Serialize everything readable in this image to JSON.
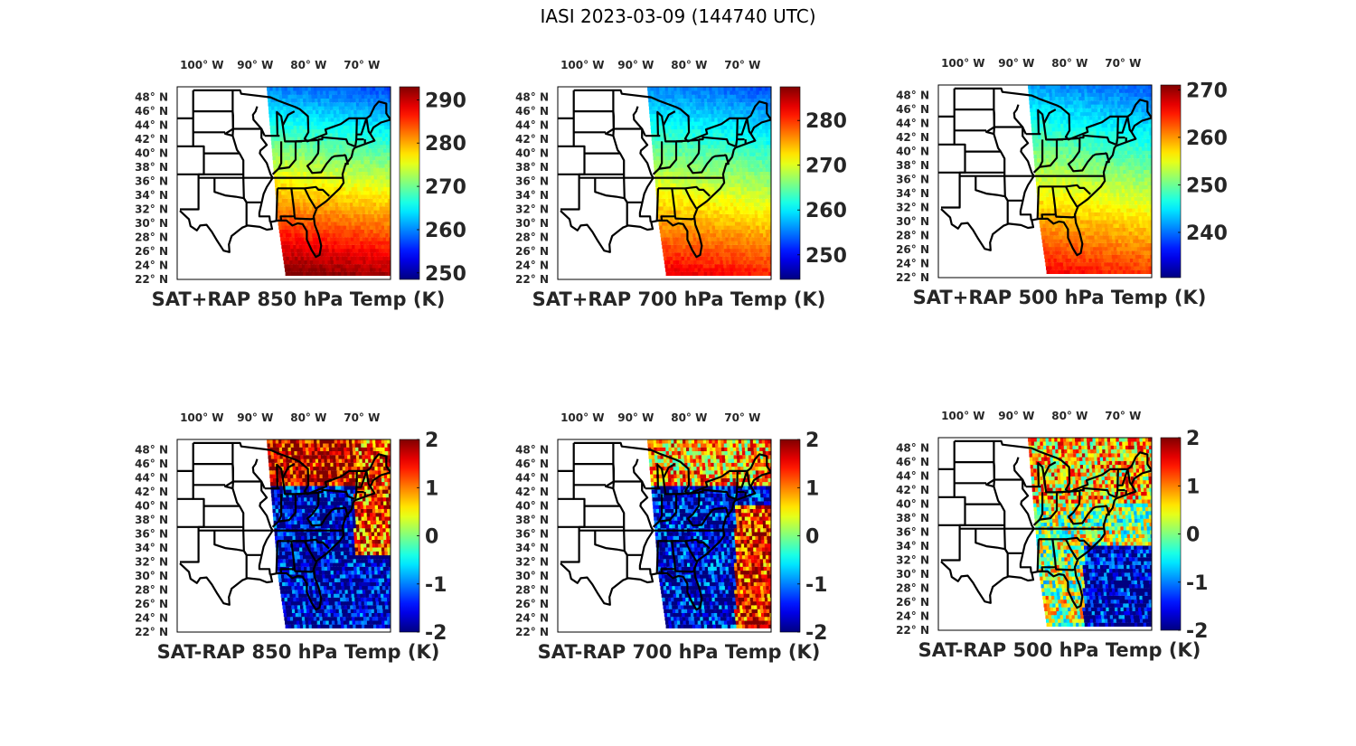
{
  "title": "IASI 2023-03-09 (144740 UTC)",
  "map_axes": {
    "lon_ticks": [
      "100° W",
      "90° W",
      "80° W",
      "70° W"
    ],
    "lon_values": [
      -100,
      -90,
      -80,
      -70
    ],
    "lat_ticks": [
      "48° N",
      "46° N",
      "44° N",
      "42° N",
      "40° N",
      "38° N",
      "36° N",
      "34° N",
      "32° N",
      "30° N",
      "28° N",
      "26° N",
      "24° N",
      "22° N"
    ],
    "lat_values": [
      48,
      46,
      44,
      42,
      40,
      38,
      36,
      34,
      32,
      30,
      28,
      26,
      24,
      22
    ],
    "lon_range": [
      -107,
      -67
    ],
    "lat_range": [
      22,
      49.5
    ]
  },
  "colormap": "jet",
  "chart_data": [
    {
      "type": "heatmap",
      "title": "SAT+RAP 850 hPa Temp (K)",
      "clim": [
        248.5,
        293
      ],
      "cbar_ticks": [
        250,
        260,
        270,
        280,
        290
      ],
      "field": "total",
      "level": 850
    },
    {
      "type": "heatmap",
      "title": "SAT+RAP 700 hPa Temp (K)",
      "clim": [
        244.5,
        287.5
      ],
      "cbar_ticks": [
        250,
        260,
        270,
        280
      ],
      "field": "total",
      "level": 700
    },
    {
      "type": "heatmap",
      "title": "SAT+RAP 500 hPa Temp (K)",
      "clim": [
        230.5,
        271
      ],
      "cbar_ticks": [
        240,
        250,
        260,
        270
      ],
      "field": "total",
      "level": 500
    },
    {
      "type": "heatmap",
      "title": "SAT-RAP 850 hPa Temp (K)",
      "clim": [
        -2,
        2
      ],
      "cbar_ticks": [
        -2,
        -1,
        0,
        1,
        2
      ],
      "field": "diff",
      "level": 850
    },
    {
      "type": "heatmap",
      "title": "SAT-RAP 700 hPa Temp (K)",
      "clim": [
        -2,
        2
      ],
      "cbar_ticks": [
        -2,
        -1,
        0,
        1,
        2
      ],
      "field": "diff",
      "level": 700
    },
    {
      "type": "heatmap",
      "title": "SAT-RAP 500 hPa Temp (K)",
      "clim": [
        -2,
        2
      ],
      "cbar_ticks": [
        -2,
        -1,
        0,
        1,
        2
      ],
      "field": "diff",
      "level": 500
    }
  ]
}
